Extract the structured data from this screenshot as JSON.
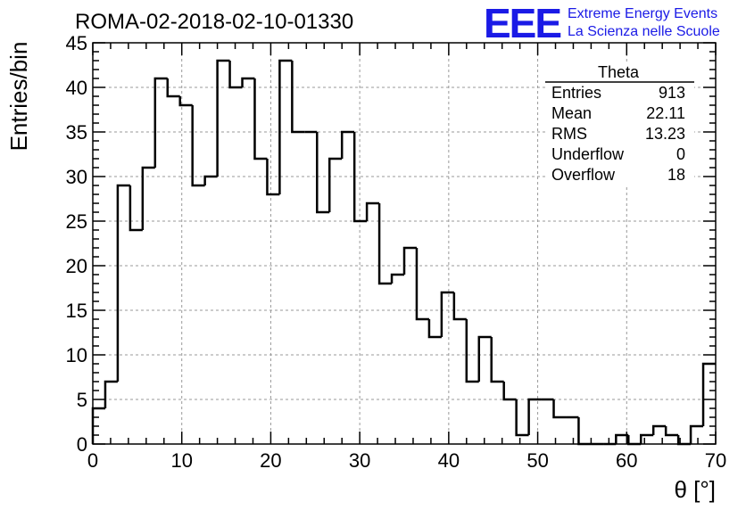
{
  "header": {
    "title": "ROMA-02-2018-02-10-01330",
    "logo_mark": "EEE",
    "logo_line1": "Extreme Energy Events",
    "logo_line2": "La Scienza nelle Scuole"
  },
  "stats_box": {
    "title": "Theta",
    "rows": [
      {
        "label": "Entries",
        "value": "913"
      },
      {
        "label": "Mean",
        "value": "22.11"
      },
      {
        "label": "RMS",
        "value": "13.23"
      },
      {
        "label": "Underflow",
        "value": "0"
      },
      {
        "label": "Overflow",
        "value": "18"
      }
    ]
  },
  "colors": {
    "line": "#000000",
    "grid": "#999999",
    "logo": "#1a1ae6"
  },
  "chart_data": {
    "type": "bar",
    "histogram": true,
    "xlabel": "θ [°]",
    "ylabel": "Entries/bin",
    "xlim": [
      0,
      70
    ],
    "ylim": [
      0,
      45
    ],
    "bin_width": 1.4,
    "x_ticks": [
      0,
      10,
      20,
      30,
      40,
      50,
      60,
      70
    ],
    "y_ticks": [
      0,
      5,
      10,
      15,
      20,
      25,
      30,
      35,
      40,
      45
    ],
    "grid": true,
    "values": [
      4,
      7,
      29,
      24,
      31,
      41,
      39,
      38,
      29,
      30,
      43,
      40,
      41,
      32,
      28,
      43,
      35,
      35,
      26,
      32,
      35,
      25,
      27,
      18,
      19,
      22,
      14,
      12,
      17,
      14,
      7,
      12,
      7,
      5,
      1,
      5,
      5,
      3,
      3,
      0,
      0,
      0,
      1,
      0,
      1,
      2,
      1,
      0,
      2,
      9
    ]
  }
}
